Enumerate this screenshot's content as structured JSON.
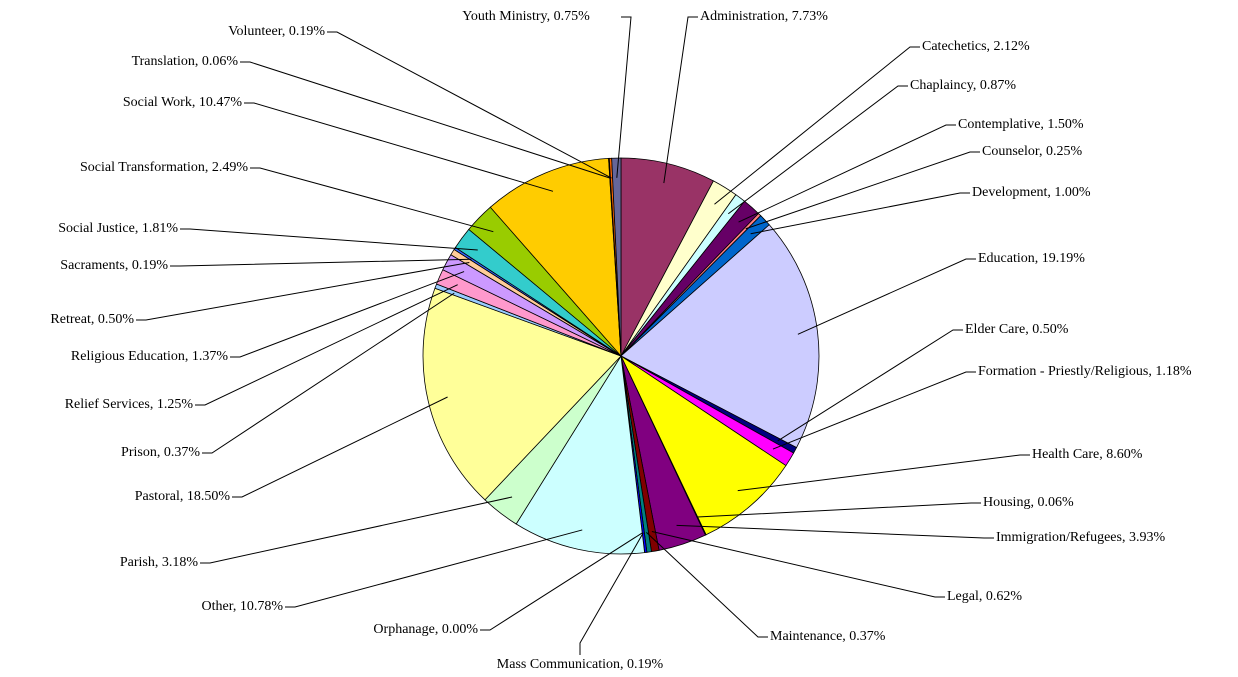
{
  "chart_data": {
    "type": "pie",
    "values": [
      7.73,
      2.12,
      0.87,
      1.5,
      0.25,
      1.0,
      19.19,
      0.5,
      1.18,
      8.6,
      0.06,
      3.93,
      0.62,
      0.37,
      0.19,
      0.0,
      10.78,
      3.18,
      18.5,
      0.37,
      1.25,
      1.37,
      0.5,
      0.19,
      1.81,
      2.49,
      10.47,
      0.06,
      0.19,
      0.75
    ],
    "value_labels": [
      "Administration, 7.73%",
      "Catechetics, 2.12%",
      "Chaplaincy, 0.87%",
      "Contemplative, 1.50%",
      "Counselor, 0.25%",
      "Development, 1.00%",
      "Education, 19.19%",
      "Elder Care, 0.50%",
      "Formation - Priestly/Religious, 1.18%",
      "Health Care, 8.60%",
      "Housing, 0.06%",
      "Immigration/Refugees, 3.93%",
      "Legal, 0.62%",
      "Maintenance, 0.37%",
      "Mass Communication, 0.19%",
      "Orphanage, 0.00%",
      "Other, 10.78%",
      "Parish, 3.18%",
      "Pastoral, 18.50%",
      "Prison, 0.37%",
      "Relief Services, 1.25%",
      "Religious Education, 1.37%",
      "Retreat, 0.50%",
      "Sacraments, 0.19%",
      "Social Justice, 1.81%",
      "Social Transformation, 2.49%",
      "Social Work, 10.47%",
      "Translation, 0.06%",
      "Volunteer, 0.19%",
      "Youth Ministry, 0.75%"
    ],
    "colors": [
      "#993366",
      "#FFFFCC",
      "#CCFFFF",
      "#660066",
      "#FF8080",
      "#0066CC",
      "#CCCCFF",
      "#000080",
      "#FF00FF",
      "#FFFF00",
      "#00FFFF",
      "#800080",
      "#800000",
      "#008080",
      "#0000FF",
      "#00CCFF",
      "#CCFFFF",
      "#CCFFCC",
      "#FFFF99",
      "#99CCFF",
      "#FF99CC",
      "#CC99FF",
      "#FFCC99",
      "#3366FF",
      "#33CCCC",
      "#99CC00",
      "#FFCC00",
      "#FF9900",
      "#FF6600",
      "#666699"
    ]
  }
}
